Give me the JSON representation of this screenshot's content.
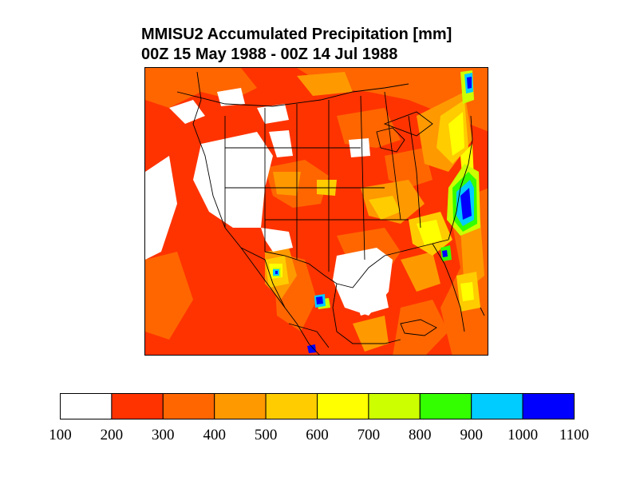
{
  "title": "MMISU2 Accumulated Precipitation [mm]",
  "subtitle": "00Z 15 May 1988 - 00Z 14 Jul 1988",
  "colorbar": {
    "labels": [
      "100",
      "200",
      "300",
      "400",
      "500",
      "600",
      "700",
      "800",
      "900",
      "1000",
      "1100"
    ],
    "colors": [
      "#ffffff",
      "#ff3300",
      "#ff6600",
      "#ff9900",
      "#ffcc00",
      "#ffff00",
      "#ccff00",
      "#33ff00",
      "#00ccff",
      "#0000ff"
    ]
  },
  "map": {
    "ocean_color": "#ff6600",
    "dry_color": "#ffffff",
    "boundary_color": "#000000"
  }
}
